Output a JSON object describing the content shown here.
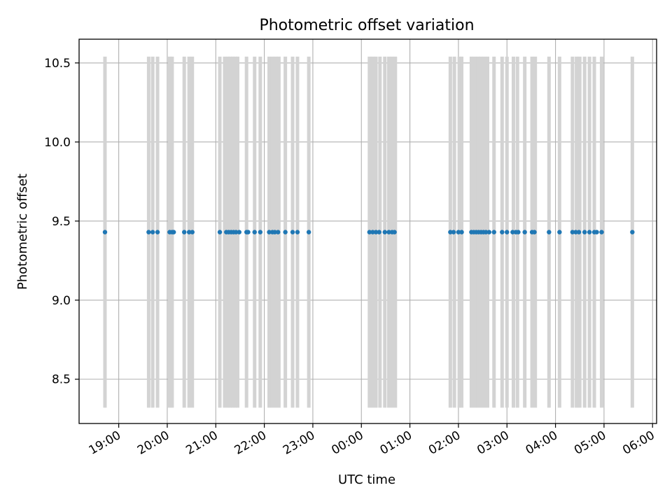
{
  "chart_data": {
    "type": "scatter",
    "title": "Photometric offset variation",
    "xlabel": "UTC time",
    "ylabel": "Photometric offset",
    "x_axis_type": "time",
    "xlim": [
      "2022-01-01T18:11",
      "2022-01-02T06:05"
    ],
    "ylim": [
      8.22,
      10.65
    ],
    "x_ticks": [
      {
        "t": "2022-01-01T19:00",
        "label": "19:00"
      },
      {
        "t": "2022-01-01T20:00",
        "label": "20:00"
      },
      {
        "t": "2022-01-01T21:00",
        "label": "21:00"
      },
      {
        "t": "2022-01-01T22:00",
        "label": "22:00"
      },
      {
        "t": "2022-01-01T23:00",
        "label": "23:00"
      },
      {
        "t": "2022-01-02T00:00",
        "label": "00:00"
      },
      {
        "t": "2022-01-02T01:00",
        "label": "01:00"
      },
      {
        "t": "2022-01-02T02:00",
        "label": "02:00"
      },
      {
        "t": "2022-01-02T03:00",
        "label": "03:00"
      },
      {
        "t": "2022-01-02T04:00",
        "label": "04:00"
      },
      {
        "t": "2022-01-02T05:00",
        "label": "05:00"
      },
      {
        "t": "2022-01-02T06:00",
        "label": "06:00"
      }
    ],
    "y_ticks": [
      {
        "v": 8.5,
        "label": "8.5"
      },
      {
        "v": 9.0,
        "label": "9.0"
      },
      {
        "v": 9.5,
        "label": "9.5"
      },
      {
        "v": 10.0,
        "label": "10.0"
      },
      {
        "v": 10.5,
        "label": "10.5"
      }
    ],
    "grid": true,
    "series": [
      {
        "color": "#1f77b4",
        "y_constant": 9.43,
        "x": [
          "2022-01-01T18:43",
          "2022-01-01T19:37",
          "2022-01-01T19:42",
          "2022-01-01T19:48",
          "2022-01-01T20:03",
          "2022-01-01T20:06",
          "2022-01-01T20:08",
          "2022-01-01T20:21",
          "2022-01-01T20:27",
          "2022-01-01T20:31",
          "2022-01-01T21:05",
          "2022-01-01T21:13",
          "2022-01-01T21:16",
          "2022-01-01T21:19",
          "2022-01-01T21:22",
          "2022-01-01T21:25",
          "2022-01-01T21:29",
          "2022-01-01T21:38",
          "2022-01-01T21:40",
          "2022-01-01T21:48",
          "2022-01-01T21:55",
          "2022-01-01T22:06",
          "2022-01-01T22:10",
          "2022-01-01T22:13",
          "2022-01-01T22:17",
          "2022-01-01T22:26",
          "2022-01-01T22:35",
          "2022-01-01T22:41",
          "2022-01-01T22:55",
          "2022-01-02T00:10",
          "2022-01-02T00:14",
          "2022-01-02T00:18",
          "2022-01-02T00:22",
          "2022-01-02T00:29",
          "2022-01-02T00:34",
          "2022-01-02T00:38",
          "2022-01-02T00:41",
          "2022-01-02T01:50",
          "2022-01-02T01:54",
          "2022-01-02T02:00",
          "2022-01-02T02:04",
          "2022-01-02T02:16",
          "2022-01-02T02:19",
          "2022-01-02T02:22",
          "2022-01-02T02:25",
          "2022-01-02T02:28",
          "2022-01-02T02:31",
          "2022-01-02T02:34",
          "2022-01-02T02:38",
          "2022-01-02T02:44",
          "2022-01-02T02:54",
          "2022-01-02T03:00",
          "2022-01-02T03:07",
          "2022-01-02T03:11",
          "2022-01-02T03:14",
          "2022-01-02T03:22",
          "2022-01-02T03:31",
          "2022-01-02T03:34",
          "2022-01-02T03:52",
          "2022-01-02T04:05",
          "2022-01-02T04:21",
          "2022-01-02T04:25",
          "2022-01-02T04:29",
          "2022-01-02T04:36",
          "2022-01-02T04:42",
          "2022-01-02T04:48",
          "2022-01-02T04:51",
          "2022-01-02T04:57",
          "2022-01-02T05:35"
        ]
      }
    ],
    "exposure_markers": {
      "color": "#d3d3d3",
      "y_range": [
        8.32,
        10.54
      ],
      "x": [
        "2022-01-01T18:43",
        "2022-01-01T19:37",
        "2022-01-01T19:42",
        "2022-01-01T19:48",
        "2022-01-01T20:03",
        "2022-01-01T20:06",
        "2022-01-01T20:21",
        "2022-01-01T20:27",
        "2022-01-01T20:31",
        "2022-01-01T21:05",
        "2022-01-01T21:11",
        "2022-01-01T21:15",
        "2022-01-01T21:18",
        "2022-01-01T21:21",
        "2022-01-01T21:24",
        "2022-01-01T21:27",
        "2022-01-01T21:38",
        "2022-01-01T21:48",
        "2022-01-01T21:55",
        "2022-01-01T22:06",
        "2022-01-01T22:10",
        "2022-01-01T22:14",
        "2022-01-01T22:18",
        "2022-01-01T22:26",
        "2022-01-01T22:35",
        "2022-01-01T22:41",
        "2022-01-01T22:55",
        "2022-01-02T00:10",
        "2022-01-02T00:14",
        "2022-01-02T00:18",
        "2022-01-02T00:23",
        "2022-01-02T00:29",
        "2022-01-02T00:34",
        "2022-01-02T00:38",
        "2022-01-02T00:42",
        "2022-01-02T01:50",
        "2022-01-02T01:55",
        "2022-01-02T02:01",
        "2022-01-02T02:04",
        "2022-01-02T02:16",
        "2022-01-02T02:20",
        "2022-01-02T02:24",
        "2022-01-02T02:28",
        "2022-01-02T02:32",
        "2022-01-02T02:36",
        "2022-01-02T02:44",
        "2022-01-02T02:54",
        "2022-01-02T03:00",
        "2022-01-02T03:08",
        "2022-01-02T03:13",
        "2022-01-02T03:22",
        "2022-01-02T03:31",
        "2022-01-02T03:35",
        "2022-01-02T03:52",
        "2022-01-02T04:05",
        "2022-01-02T04:21",
        "2022-01-02T04:26",
        "2022-01-02T04:30",
        "2022-01-02T04:36",
        "2022-01-02T04:42",
        "2022-01-02T04:48",
        "2022-01-02T04:57",
        "2022-01-02T05:35"
      ]
    }
  }
}
